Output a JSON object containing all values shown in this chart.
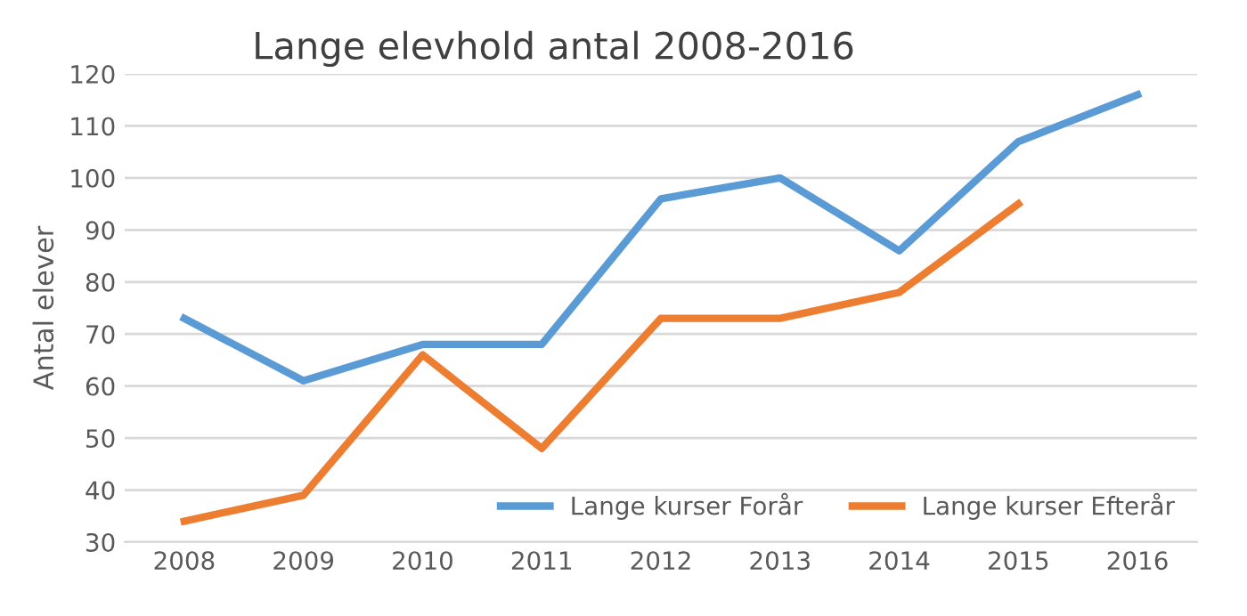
{
  "chart_data": {
    "type": "line",
    "title": "Lange elevhold antal 2008-2016",
    "ylabel": "Antal elever",
    "categories": [
      "2008",
      "2009",
      "2010",
      "2011",
      "2012",
      "2013",
      "2014",
      "2015",
      "2016"
    ],
    "series": [
      {
        "name": "Lange kurser Forår",
        "color": "#5b9bd5",
        "values": [
          73,
          61,
          68,
          68,
          96,
          100,
          86,
          107,
          116
        ]
      },
      {
        "name": "Lange kurser Efterår",
        "color": "#ed7d31",
        "values": [
          34,
          39,
          66,
          48,
          73,
          73,
          78,
          95,
          null
        ]
      }
    ],
    "ylim": [
      30,
      120
    ],
    "yticks": [
      30,
      40,
      50,
      60,
      70,
      80,
      90,
      100,
      110,
      120
    ],
    "grid": "y",
    "legend": "bottom right",
    "marker": "none",
    "line_style": "solid"
  }
}
